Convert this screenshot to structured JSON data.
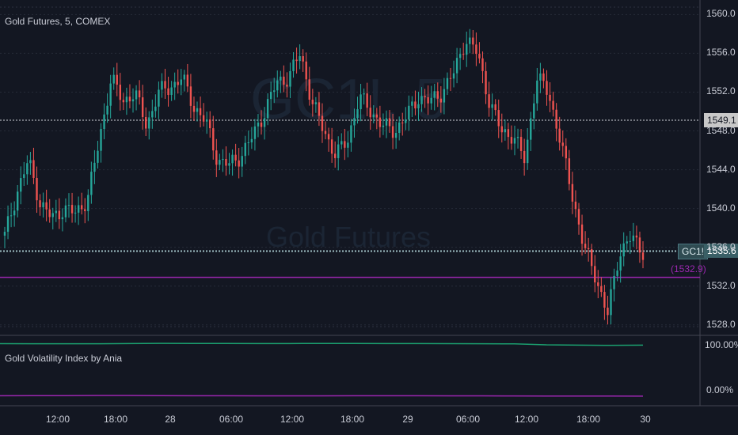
{
  "main_pane": {
    "title": "Gold Futures, 5, COMEX",
    "watermark_symbol": "GC1!, 5",
    "watermark_name": "Gold Futures",
    "symbol_tag": "GC1!",
    "last_price": "1535.6",
    "crosshair_price": "1549.1",
    "purple_level": "1532.9",
    "price_ticks": [
      "1560.0",
      "1556.0",
      "1552.0",
      "1548.0",
      "1544.0",
      "1540.0",
      "1536.0",
      "1532.0",
      "1528.0"
    ]
  },
  "indicator_pane": {
    "title": "Gold Volatility Index by Ania",
    "ticks": [
      "100.00%",
      "0.00%"
    ]
  },
  "time_axis": {
    "ticks": [
      "12:00",
      "18:00",
      "28",
      "06:00",
      "12:00",
      "18:00",
      "29",
      "06:00",
      "12:00",
      "18:00",
      "30"
    ]
  },
  "colors": {
    "background": "#131722",
    "bull_candle": "#26a69a",
    "bear_candle": "#ef5350",
    "purple_line": "#9c27b0",
    "green_line": "#1b9e6e",
    "last_price_bg": "#3a5f66",
    "crosshair_bg": "#c8c8c8"
  },
  "chart_data": {
    "type": "candlestick",
    "title": "Gold Futures, 5, COMEX",
    "ylim": [
      1527,
      1561.5
    ],
    "x": [
      "12:00",
      "18:00",
      "28",
      "06:00",
      "12:00",
      "18:00",
      "29",
      "06:00",
      "12:00",
      "18:00",
      "30"
    ],
    "closes": [
      1537.2,
      1541.5,
      1545.0,
      1540.5,
      1539.0,
      1540.0,
      1539.5,
      1541.0,
      1547.0,
      1553.5,
      1551.0,
      1552.0,
      1548.5,
      1552.0,
      1552.5,
      1553.5,
      1550.5,
      1549.0,
      1545.0,
      1544.5,
      1545.5,
      1547.5,
      1550.0,
      1553.0,
      1553.5,
      1556.0,
      1551.0,
      1548.0,
      1545.5,
      1547.0,
      1551.5,
      1550.0,
      1548.5,
      1548.0,
      1549.5,
      1551.5,
      1551.0,
      1552.0,
      1554.0,
      1557.5,
      1556.0,
      1551.0,
      1548.0,
      1547.5,
      1545.0,
      1553.5,
      1552.0,
      1547.0,
      1541.5,
      1536.0,
      1533.0,
      1529.0,
      1535.5,
      1537.0,
      1535.6
    ],
    "volatility_upper": [
      99.2,
      99.0,
      99.0,
      99.0,
      99.5,
      99.8,
      99.7,
      99.6,
      99.5,
      99.5,
      99.6,
      99.7,
      99.5,
      99.4,
      99.3,
      99.0,
      98.9,
      97.0,
      96.5,
      96.0,
      96.5
    ],
    "volatility_lower": [
      1.0,
      1.1,
      1.2,
      1.5,
      1.5,
      1.2,
      1.0,
      0.9,
      0.8,
      0.7,
      0.8,
      1.0,
      0.9,
      0.9,
      0.8,
      0.7,
      0.6,
      0.4,
      0.3,
      0.3,
      0.2
    ],
    "horizontal_levels": [
      1549.1,
      1535.6,
      1532.9
    ]
  }
}
